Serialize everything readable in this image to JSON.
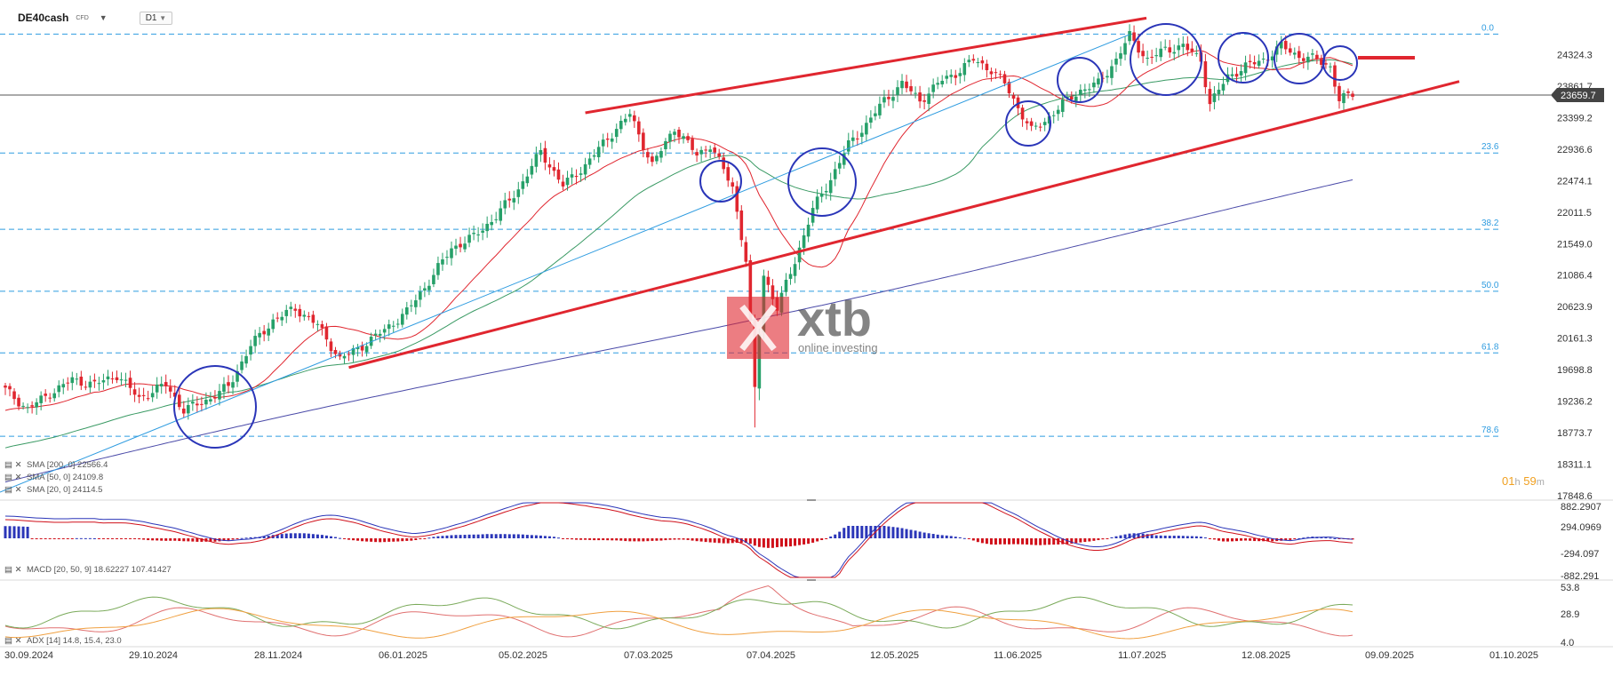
{
  "header": {
    "symbol": "DE40cash",
    "instrument_type": "CFD",
    "timeframe": "D1",
    "countdown_hours": "01",
    "countdown_h": "h",
    "countdown_minutes": "59",
    "countdown_m": "m"
  },
  "colors": {
    "up": "#26a069",
    "down": "#e0262f",
    "sma200": "#4a4aa8",
    "sma50": "#3a9a64",
    "sma20": "#e0262f",
    "channel": "#e0262f",
    "trendline": "#2f9ce0",
    "fib": "#2f9ce0",
    "circle": "#2a35b8",
    "macd_pos": "#2a35b8",
    "macd_neg": "#d0101a",
    "adx": "#e07070",
    "di_plus": "#7aaa5a",
    "di_minus": "#f0a040",
    "price_tag": "#444444"
  },
  "chart_data": {
    "type": "candlestick",
    "x_labels": [
      "30.09.2024",
      "29.10.2024",
      "28.11.2024",
      "06.01.2025",
      "05.02.2025",
      "07.03.2025",
      "07.04.2025",
      "12.05.2025",
      "11.06.2025",
      "11.07.2025",
      "12.08.2025",
      "09.09.2025",
      "01.10.2025"
    ],
    "y_ticks": [
      "24324.3",
      "23861.7",
      "23399.2",
      "22936.6",
      "22474.1",
      "22011.5",
      "21549.0",
      "21086.4",
      "20623.9",
      "20161.3",
      "19698.8",
      "19236.2",
      "18773.7",
      "18311.1",
      "17848.6"
    ],
    "ylim": [
      17848.6,
      24786.9
    ],
    "current_price": "23659.7",
    "fib_labels": [
      "0.0",
      "23.6",
      "38.2",
      "50.0",
      "61.8",
      "78.6"
    ],
    "fib_levels": [
      24625,
      22880,
      21760,
      20850,
      19945,
      18720
    ],
    "anchors": [
      [
        0,
        19400
      ],
      [
        5,
        19120
      ],
      [
        10,
        19350
      ],
      [
        15,
        19550
      ],
      [
        20,
        19480
      ],
      [
        25,
        19620
      ],
      [
        30,
        19280
      ],
      [
        36,
        19480
      ],
      [
        40,
        19100
      ],
      [
        46,
        19280
      ],
      [
        50,
        19450
      ],
      [
        55,
        20050
      ],
      [
        60,
        20420
      ],
      [
        65,
        20600
      ],
      [
        70,
        20350
      ],
      [
        75,
        19850
      ],
      [
        80,
        20050
      ],
      [
        85,
        20280
      ],
      [
        90,
        20550
      ],
      [
        95,
        21000
      ],
      [
        100,
        21480
      ],
      [
        105,
        21650
      ],
      [
        110,
        21950
      ],
      [
        115,
        22350
      ],
      [
        120,
        22900
      ],
      [
        125,
        22400
      ],
      [
        130,
        22700
      ],
      [
        135,
        23100
      ],
      [
        140,
        23450
      ],
      [
        145,
        22700
      ],
      [
        150,
        23250
      ],
      [
        155,
        22850
      ],
      [
        158,
        23000
      ],
      [
        163,
        22380
      ],
      [
        166,
        21300
      ],
      [
        168,
        19400
      ],
      [
        170,
        21100
      ],
      [
        173,
        20600
      ],
      [
        177,
        21300
      ],
      [
        181,
        22050
      ],
      [
        185,
        22500
      ],
      [
        189,
        23000
      ],
      [
        193,
        23300
      ],
      [
        197,
        23650
      ],
      [
        201,
        23900
      ],
      [
        205,
        23650
      ],
      [
        210,
        23950
      ],
      [
        213,
        24050
      ],
      [
        217,
        24250
      ],
      [
        221,
        24100
      ],
      [
        224,
        23900
      ],
      [
        227,
        23550
      ],
      [
        230,
        23200
      ],
      [
        233,
        23350
      ],
      [
        237,
        23600
      ],
      [
        241,
        23800
      ],
      [
        245,
        23900
      ],
      [
        249,
        24250
      ],
      [
        252,
        24600
      ],
      [
        256,
        24250
      ],
      [
        260,
        24400
      ],
      [
        264,
        24450
      ],
      [
        268,
        24250
      ],
      [
        270,
        23600
      ],
      [
        274,
        24000
      ],
      [
        278,
        24150
      ],
      [
        282,
        24250
      ],
      [
        286,
        24450
      ],
      [
        290,
        24300
      ],
      [
        294,
        24250
      ],
      [
        297,
        24150
      ],
      [
        299,
        23650
      ],
      [
        302,
        23750
      ]
    ],
    "indicators": {
      "sma200": {
        "label": "SMA [200, 0]",
        "value": "22566.4"
      },
      "sma50": {
        "label": "SMA [50, 0]",
        "value": "24109.8"
      },
      "sma20": {
        "label": "SMA [20, 0]",
        "value": "24114.5"
      },
      "macd": {
        "label": "MACD [20, 50, 9]",
        "value1": "18.62227",
        "value2": "107.41427",
        "y_ticks": [
          "882.2907",
          "294.0969",
          "-294.097",
          "-882.291"
        ]
      },
      "adx": {
        "label": "ADX [14]",
        "values": "14.8, 15.4, 23.0",
        "y_ticks": [
          "53.8",
          "28.9",
          "4.0"
        ]
      }
    }
  },
  "watermark": {
    "brand": "xtb",
    "tagline": "online investing"
  }
}
